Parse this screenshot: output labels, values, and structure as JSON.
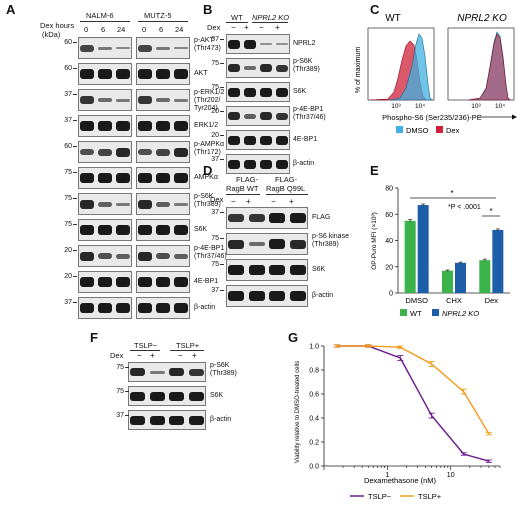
{
  "panels": {
    "A": {
      "label": "A",
      "cell_lines": [
        "NALM-6",
        "MUTZ-5"
      ],
      "timepoint_header": "Dex hours",
      "timepoints": [
        "0",
        "6",
        "24"
      ],
      "kda_header": "(kDa)",
      "rows": [
        {
          "label": "p-AKT",
          "sub": "(Thr473)",
          "kda": "60"
        },
        {
          "label": "AKT",
          "sub": "",
          "kda": "60"
        },
        {
          "label": "p-ERK1/2",
          "sub": "(Thr202/",
          "sub2": "Tyr204)",
          "kda": "37"
        },
        {
          "label": "ERK1/2",
          "sub": "",
          "kda": "37"
        },
        {
          "label": "p-AMPKα",
          "sub": "(Thr172)",
          "kda": "60"
        },
        {
          "label": "AMPKα",
          "sub": "",
          "kda": "75"
        },
        {
          "label": "p-S6K",
          "sub": "(Thr389)",
          "kda": "75"
        },
        {
          "label": "S6K",
          "sub": "",
          "kda": "75"
        },
        {
          "label": "p-4E-BP1",
          "sub": "(Thr37/46)",
          "kda": "20"
        },
        {
          "label": "4E-BP1",
          "sub": "",
          "kda": "20"
        },
        {
          "label": "β-actin",
          "sub": "",
          "kda": "37"
        }
      ]
    },
    "B": {
      "label": "B",
      "groups": [
        "WT",
        "NPRL2 KO"
      ],
      "dex_label": "Dex",
      "signs": [
        "−",
        "+",
        "−",
        "+"
      ],
      "rows": [
        {
          "label": "NPRL2",
          "sub": "",
          "kda": "37"
        },
        {
          "label": "p-S6K",
          "sub": "(Thr389)",
          "kda": "75"
        },
        {
          "label": "S6K",
          "sub": "",
          "kda": "75"
        },
        {
          "label": "p-4E-BP1",
          "sub": "(Thr37/46)",
          "kda": "20"
        },
        {
          "label": "4E-BP1",
          "sub": "",
          "kda": "20"
        },
        {
          "label": "β-actin",
          "sub": "",
          "kda": "37"
        }
      ]
    },
    "C": {
      "label": "C",
      "titles": [
        "WT",
        "NPRL2 KO"
      ],
      "ylabel": "% of maximum",
      "xlabel": "Phospho-S6 (Ser235/236)-PE",
      "xticks": [
        "10³",
        "10⁴"
      ],
      "legend": [
        {
          "name": "DMSO",
          "color": "#3fb0e0"
        },
        {
          "name": "Dex",
          "color": "#d0213a"
        }
      ]
    },
    "D": {
      "label": "D",
      "groups": [
        "FLAG-RagB WT",
        "FLAG-RagB Q99L"
      ],
      "group_lines": [
        [
          "FLAG-",
          "RagB WT"
        ],
        [
          "FLAG-",
          "RagB Q99L"
        ]
      ],
      "dex_label": "Dex",
      "signs": [
        "−",
        "+",
        "−",
        "+"
      ],
      "rows": [
        {
          "label": "FLAG",
          "sub": "",
          "kda": "37"
        },
        {
          "label": "p-S6 kinase",
          "sub": "(Thr389)",
          "kda": "75"
        },
        {
          "label": "S6K",
          "sub": "",
          "kda": "75"
        },
        {
          "label": "β-actin",
          "sub": "",
          "kda": "37"
        }
      ]
    },
    "E": {
      "label": "E",
      "ylabel": "OP-Puro MFI (×10³)",
      "annotation": "*P < .0001",
      "star": "*",
      "legend": [
        {
          "name": "WT",
          "color": "#3bb24a"
        },
        {
          "name": "NPRL2 KO",
          "color": "#1c5fa8"
        }
      ]
    },
    "F": {
      "label": "F",
      "groups": [
        "TSLP−",
        "TSLP+"
      ],
      "dex_label": "Dex",
      "signs": [
        "−",
        "+",
        "−",
        "+"
      ],
      "rows": [
        {
          "label": "p-S6K",
          "sub": "(Thr389)",
          "kda": "75"
        },
        {
          "label": "S6K",
          "sub": "",
          "kda": "75"
        },
        {
          "label": "β-actin",
          "sub": "",
          "kda": "37"
        }
      ]
    },
    "G": {
      "label": "G",
      "ylabel": "Viability relative to DMSO-treated cells",
      "xlabel": "Dexamethasone (nM)"
    }
  },
  "chart_data": [
    {
      "panel": "E",
      "type": "bar",
      "categories": [
        "DMSO",
        "CHX",
        "Dex"
      ],
      "series": [
        {
          "name": "WT",
          "values": [
            55,
            17,
            25
          ],
          "errors": [
            1,
            0.5,
            0.8
          ],
          "color": "#3bb24a"
        },
        {
          "name": "NPRL2 KO",
          "values": [
            67,
            23,
            48
          ],
          "errors": [
            0.8,
            0.5,
            0.8
          ],
          "color": "#1c5fa8"
        }
      ],
      "ylim": [
        0,
        80
      ],
      "yticks": [
        0,
        20,
        40,
        60,
        80
      ],
      "ylabel": "OP-Puro MFI (×10³)",
      "annotation": "*P < .0001"
    },
    {
      "panel": "G",
      "type": "line",
      "xscale": "log",
      "xlabel": "Dexamethasone (nM)",
      "ylabel": "Viability relative to DMSO-treated cells",
      "xticks": [
        1,
        10
      ],
      "xlim": [
        0.1,
        60
      ],
      "ylim": [
        0,
        1.0
      ],
      "yticks": [
        0.0,
        0.2,
        0.4,
        0.6,
        0.8,
        1.0
      ],
      "series": [
        {
          "name": "TSLP−",
          "color": "#6a1b8a",
          "x": [
            0.16,
            0.5,
            1.6,
            5,
            16,
            40
          ],
          "y": [
            1.0,
            1.0,
            0.9,
            0.42,
            0.1,
            0.04
          ],
          "errors": [
            0.01,
            0.01,
            0.02,
            0.02,
            0.01,
            0.01
          ]
        },
        {
          "name": "TSLP+",
          "color": "#f39b1e",
          "x": [
            0.16,
            0.5,
            1.6,
            5,
            16,
            40
          ],
          "y": [
            1.0,
            1.0,
            0.99,
            0.85,
            0.62,
            0.27
          ],
          "errors": [
            0.01,
            0.01,
            0.01,
            0.02,
            0.02,
            0.01
          ]
        }
      ]
    }
  ]
}
